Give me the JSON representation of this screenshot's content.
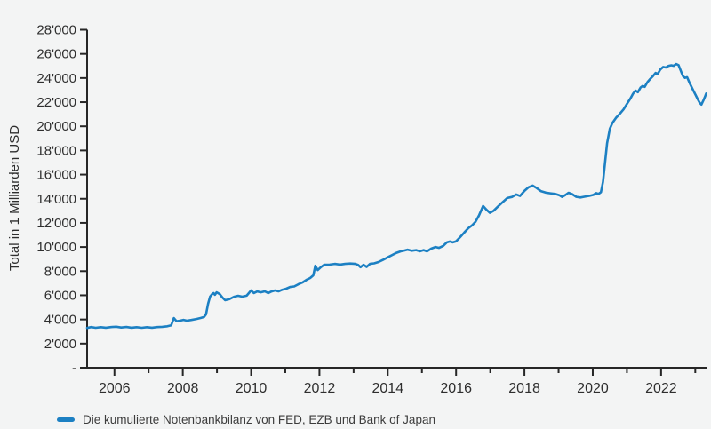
{
  "style": {
    "background": "#f3f4f4",
    "axis_color": "#262626",
    "text_color": "#2e2e2e",
    "legend_text_color": "#3c3c3c"
  },
  "chart_data": {
    "type": "line",
    "title": "",
    "xlabel": "",
    "ylabel": "Total in 1 Milliarden USD",
    "unit": "Milliarden USD",
    "grid": false,
    "legend_position": "bottom-left",
    "x_range": [
      2005.2,
      2023.33
    ],
    "y_range": [
      0,
      28000
    ],
    "y_ticks": [
      {
        "value": 0,
        "label": "-"
      },
      {
        "value": 2000,
        "label": "2'000"
      },
      {
        "value": 4000,
        "label": "4'000"
      },
      {
        "value": 6000,
        "label": "6'000"
      },
      {
        "value": 8000,
        "label": "8'000"
      },
      {
        "value": 10000,
        "label": "10'000"
      },
      {
        "value": 12000,
        "label": "12'000"
      },
      {
        "value": 14000,
        "label": "14'000"
      },
      {
        "value": 16000,
        "label": "16'000"
      },
      {
        "value": 18000,
        "label": "18'000"
      },
      {
        "value": 20000,
        "label": "20'000"
      },
      {
        "value": 22000,
        "label": "22'000"
      },
      {
        "value": 24000,
        "label": "24'000"
      },
      {
        "value": 26000,
        "label": "26'000"
      },
      {
        "value": 28000,
        "label": "28'000"
      }
    ],
    "x_ticks": [
      {
        "year": 2006,
        "label": "2006"
      },
      {
        "year": 2007
      },
      {
        "year": 2008,
        "label": "2008"
      },
      {
        "year": 2009
      },
      {
        "year": 2010,
        "label": "2010"
      },
      {
        "year": 2011
      },
      {
        "year": 2012,
        "label": "2012"
      },
      {
        "year": 2013
      },
      {
        "year": 2014,
        "label": "2014"
      },
      {
        "year": 2015
      },
      {
        "year": 2016,
        "label": "2016"
      },
      {
        "year": 2017
      },
      {
        "year": 2018,
        "label": "2018"
      },
      {
        "year": 2019
      },
      {
        "year": 2020,
        "label": "2020"
      },
      {
        "year": 2021
      },
      {
        "year": 2022,
        "label": "2022"
      },
      {
        "year": 2023
      }
    ],
    "series": [
      {
        "name": "Die kumulierte Notenbankbilanz von FED, EZB und Bank of Japan",
        "color": "#1c80c3",
        "points": [
          [
            2005.2,
            3300
          ],
          [
            2005.32,
            3370
          ],
          [
            2005.45,
            3310
          ],
          [
            2005.6,
            3360
          ],
          [
            2005.75,
            3320
          ],
          [
            2005.9,
            3370
          ],
          [
            2006.05,
            3400
          ],
          [
            2006.2,
            3330
          ],
          [
            2006.35,
            3380
          ],
          [
            2006.5,
            3320
          ],
          [
            2006.65,
            3360
          ],
          [
            2006.8,
            3310
          ],
          [
            2006.95,
            3360
          ],
          [
            2007.1,
            3320
          ],
          [
            2007.25,
            3370
          ],
          [
            2007.4,
            3390
          ],
          [
            2007.55,
            3440
          ],
          [
            2007.66,
            3520
          ],
          [
            2007.74,
            4110
          ],
          [
            2007.82,
            3850
          ],
          [
            2007.92,
            3900
          ],
          [
            2008.02,
            3970
          ],
          [
            2008.12,
            3900
          ],
          [
            2008.25,
            3960
          ],
          [
            2008.4,
            4040
          ],
          [
            2008.52,
            4120
          ],
          [
            2008.62,
            4200
          ],
          [
            2008.68,
            4420
          ],
          [
            2008.74,
            5300
          ],
          [
            2008.8,
            5900
          ],
          [
            2008.86,
            6100
          ],
          [
            2008.9,
            6180
          ],
          [
            2008.94,
            6040
          ],
          [
            2008.99,
            6250
          ],
          [
            2009.08,
            6100
          ],
          [
            2009.16,
            5820
          ],
          [
            2009.24,
            5590
          ],
          [
            2009.36,
            5670
          ],
          [
            2009.5,
            5880
          ],
          [
            2009.62,
            5960
          ],
          [
            2009.74,
            5890
          ],
          [
            2009.87,
            5970
          ],
          [
            2010.0,
            6400
          ],
          [
            2010.08,
            6190
          ],
          [
            2010.18,
            6320
          ],
          [
            2010.28,
            6250
          ],
          [
            2010.4,
            6330
          ],
          [
            2010.5,
            6190
          ],
          [
            2010.6,
            6320
          ],
          [
            2010.7,
            6400
          ],
          [
            2010.8,
            6330
          ],
          [
            2010.92,
            6470
          ],
          [
            2011.03,
            6550
          ],
          [
            2011.14,
            6690
          ],
          [
            2011.26,
            6730
          ],
          [
            2011.38,
            6910
          ],
          [
            2011.5,
            7060
          ],
          [
            2011.62,
            7280
          ],
          [
            2011.73,
            7430
          ],
          [
            2011.82,
            7650
          ],
          [
            2011.88,
            8450
          ],
          [
            2011.95,
            8090
          ],
          [
            2012.04,
            8330
          ],
          [
            2012.14,
            8530
          ],
          [
            2012.3,
            8540
          ],
          [
            2012.45,
            8600
          ],
          [
            2012.6,
            8540
          ],
          [
            2012.75,
            8600
          ],
          [
            2012.9,
            8630
          ],
          [
            2013.05,
            8600
          ],
          [
            2013.13,
            8520
          ],
          [
            2013.2,
            8330
          ],
          [
            2013.29,
            8530
          ],
          [
            2013.38,
            8350
          ],
          [
            2013.48,
            8600
          ],
          [
            2013.6,
            8650
          ],
          [
            2013.73,
            8760
          ],
          [
            2013.86,
            8930
          ],
          [
            2014.0,
            9150
          ],
          [
            2014.13,
            9340
          ],
          [
            2014.26,
            9520
          ],
          [
            2014.38,
            9640
          ],
          [
            2014.47,
            9700
          ],
          [
            2014.58,
            9780
          ],
          [
            2014.7,
            9690
          ],
          [
            2014.83,
            9740
          ],
          [
            2014.94,
            9650
          ],
          [
            2015.05,
            9740
          ],
          [
            2015.15,
            9640
          ],
          [
            2015.27,
            9860
          ],
          [
            2015.4,
            10000
          ],
          [
            2015.5,
            9930
          ],
          [
            2015.62,
            10090
          ],
          [
            2015.73,
            10380
          ],
          [
            2015.82,
            10460
          ],
          [
            2015.9,
            10380
          ],
          [
            2016.0,
            10470
          ],
          [
            2016.12,
            10820
          ],
          [
            2016.24,
            11200
          ],
          [
            2016.36,
            11560
          ],
          [
            2016.47,
            11800
          ],
          [
            2016.57,
            12100
          ],
          [
            2016.67,
            12620
          ],
          [
            2016.79,
            13400
          ],
          [
            2016.89,
            13090
          ],
          [
            2016.99,
            12830
          ],
          [
            2017.1,
            13010
          ],
          [
            2017.22,
            13340
          ],
          [
            2017.36,
            13710
          ],
          [
            2017.5,
            14060
          ],
          [
            2017.64,
            14150
          ],
          [
            2017.76,
            14360
          ],
          [
            2017.87,
            14230
          ],
          [
            2018.0,
            14650
          ],
          [
            2018.12,
            14950
          ],
          [
            2018.24,
            15090
          ],
          [
            2018.36,
            14890
          ],
          [
            2018.48,
            14640
          ],
          [
            2018.62,
            14510
          ],
          [
            2018.76,
            14450
          ],
          [
            2018.9,
            14400
          ],
          [
            2019.02,
            14300
          ],
          [
            2019.1,
            14150
          ],
          [
            2019.2,
            14310
          ],
          [
            2019.29,
            14500
          ],
          [
            2019.4,
            14380
          ],
          [
            2019.52,
            14160
          ],
          [
            2019.64,
            14110
          ],
          [
            2019.77,
            14170
          ],
          [
            2019.9,
            14240
          ],
          [
            2020.02,
            14320
          ],
          [
            2020.1,
            14470
          ],
          [
            2020.17,
            14400
          ],
          [
            2020.24,
            14550
          ],
          [
            2020.3,
            15400
          ],
          [
            2020.36,
            17000
          ],
          [
            2020.42,
            18600
          ],
          [
            2020.5,
            19800
          ],
          [
            2020.58,
            20300
          ],
          [
            2020.68,
            20700
          ],
          [
            2020.78,
            21000
          ],
          [
            2020.9,
            21400
          ],
          [
            2021.0,
            21850
          ],
          [
            2021.1,
            22300
          ],
          [
            2021.18,
            22700
          ],
          [
            2021.25,
            22960
          ],
          [
            2021.32,
            22830
          ],
          [
            2021.4,
            23220
          ],
          [
            2021.46,
            23340
          ],
          [
            2021.52,
            23270
          ],
          [
            2021.6,
            23660
          ],
          [
            2021.68,
            23920
          ],
          [
            2021.76,
            24150
          ],
          [
            2021.84,
            24420
          ],
          [
            2021.9,
            24330
          ],
          [
            2021.98,
            24720
          ],
          [
            2022.06,
            24920
          ],
          [
            2022.14,
            24870
          ],
          [
            2022.22,
            25010
          ],
          [
            2022.3,
            25060
          ],
          [
            2022.37,
            25010
          ],
          [
            2022.44,
            25160
          ],
          [
            2022.51,
            25070
          ],
          [
            2022.58,
            24560
          ],
          [
            2022.64,
            24150
          ],
          [
            2022.7,
            24010
          ],
          [
            2022.76,
            24070
          ],
          [
            2022.84,
            23550
          ],
          [
            2022.92,
            23100
          ],
          [
            2023.0,
            22650
          ],
          [
            2023.07,
            22250
          ],
          [
            2023.13,
            21950
          ],
          [
            2023.18,
            21800
          ],
          [
            2023.24,
            22150
          ],
          [
            2023.29,
            22500
          ],
          [
            2023.32,
            22720
          ]
        ]
      }
    ]
  }
}
